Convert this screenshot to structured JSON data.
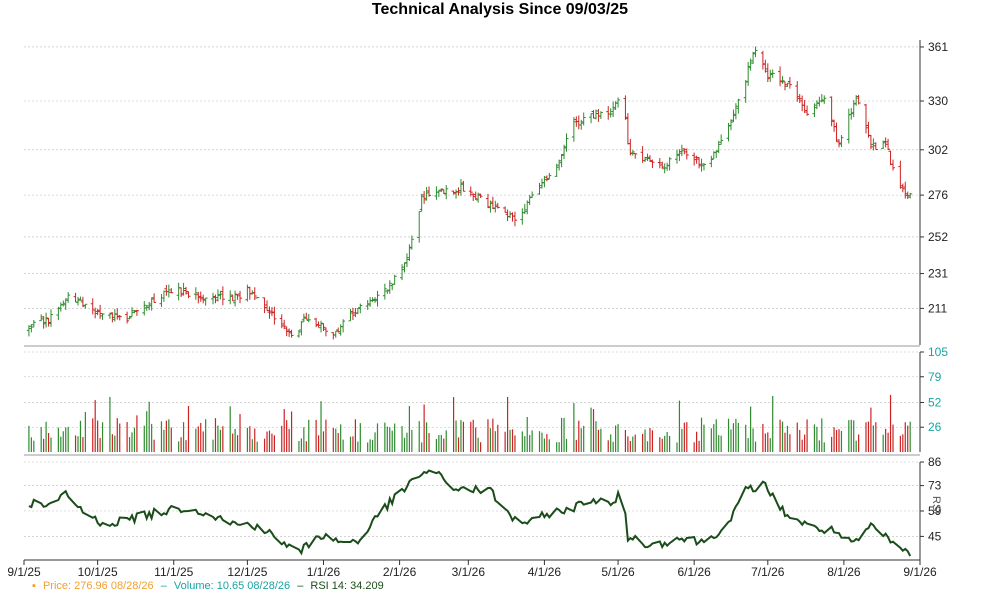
{
  "chart_data": {
    "title": "Technical Analysis Since 09/03/25",
    "x_ticks": [
      "9/1/25",
      "10/1/25",
      "11/1/25",
      "12/1/25",
      "1/1/26",
      "2/1/26",
      "3/1/26",
      "4/1/26",
      "5/1/26",
      "6/1/26",
      "7/1/26",
      "8/1/26",
      "9/1/26"
    ],
    "price_panel": {
      "type": "ohlc",
      "y_ticks": [
        361,
        330,
        302,
        276,
        252,
        231,
        211
      ],
      "ylim": [
        190,
        365
      ],
      "up_color": "#2e8b2e",
      "down_color": "#cc2222",
      "anchors": [
        [
          "9/3/25",
          199
        ],
        [
          "9/12/25",
          206
        ],
        [
          "9/20/25",
          218
        ],
        [
          "9/28/25",
          210
        ],
        [
          "10/5/25",
          208
        ],
        [
          "10/12/25",
          205
        ],
        [
          "10/20/25",
          214
        ],
        [
          "10/28/25",
          219
        ],
        [
          "11/5/25",
          221
        ],
        [
          "11/15/25",
          218
        ],
        [
          "11/25/25",
          217
        ],
        [
          "12/3/25",
          222
        ],
        [
          "12/10/25",
          210
        ],
        [
          "12/18/25",
          197
        ],
        [
          "12/26/25",
          205
        ],
        [
          "1/4/26",
          196
        ],
        [
          "1/12/26",
          207
        ],
        [
          "1/20/26",
          216
        ],
        [
          "1/28/26",
          224
        ],
        [
          "2/4/26",
          240
        ],
        [
          "2/10/26",
          274
        ],
        [
          "2/18/26",
          278
        ],
        [
          "2/26/26",
          280
        ],
        [
          "3/5/26",
          275
        ],
        [
          "3/12/26",
          268
        ],
        [
          "3/20/26",
          262
        ],
        [
          "3/28/26",
          276
        ],
        [
          "4/5/26",
          290
        ],
        [
          "4/12/26",
          316
        ],
        [
          "4/20/26",
          322
        ],
        [
          "4/28/26",
          325
        ],
        [
          "5/3/26",
          334
        ],
        [
          "5/5/26",
          303
        ],
        [
          "5/12/26",
          296
        ],
        [
          "5/20/26",
          294
        ],
        [
          "5/28/26",
          301
        ],
        [
          "6/5/26",
          292
        ],
        [
          "6/12/26",
          305
        ],
        [
          "6/20/26",
          335
        ],
        [
          "6/26/26",
          360
        ],
        [
          "7/1/26",
          345
        ],
        [
          "7/10/26",
          338
        ],
        [
          "7/18/26",
          322
        ],
        [
          "7/24/26",
          333
        ],
        [
          "7/30/26",
          305
        ],
        [
          "8/6/26",
          331
        ],
        [
          "8/12/26",
          305
        ],
        [
          "8/18/26",
          304
        ],
        [
          "8/24/26",
          280
        ],
        [
          "8/28/26",
          277
        ]
      ]
    },
    "volume_panel": {
      "type": "bar",
      "y_ticks": [
        105,
        79,
        52,
        26
      ],
      "ylim": [
        0,
        105
      ]
    },
    "rsi_panel": {
      "type": "line",
      "ylabel": "RSI",
      "y_ticks": [
        86,
        73,
        59,
        45
      ],
      "ylim": [
        32,
        86
      ],
      "color": "#1b4d1b",
      "anchors": [
        [
          "9/3/25",
          64
        ],
        [
          "9/10/25",
          61
        ],
        [
          "9/18/25",
          68
        ],
        [
          "9/28/25",
          55
        ],
        [
          "10/5/25",
          52
        ],
        [
          "10/15/25",
          55
        ],
        [
          "10/25/25",
          58
        ],
        [
          "11/5/25",
          61
        ],
        [
          "11/15/25",
          58
        ],
        [
          "11/25/25",
          52
        ],
        [
          "12/5/25",
          51
        ],
        [
          "12/15/25",
          42
        ],
        [
          "12/22/25",
          36
        ],
        [
          "12/30/25",
          46
        ],
        [
          "1/8/26",
          42
        ],
        [
          "1/16/26",
          43
        ],
        [
          "1/25/26",
          60
        ],
        [
          "2/1/26",
          68
        ],
        [
          "2/8/26",
          78
        ],
        [
          "2/14/26",
          82
        ],
        [
          "2/22/26",
          72
        ],
        [
          "3/1/26",
          71
        ],
        [
          "3/10/26",
          70
        ],
        [
          "3/18/26",
          56
        ],
        [
          "3/26/26",
          52
        ],
        [
          "4/3/26",
          58
        ],
        [
          "4/12/26",
          60
        ],
        [
          "4/20/26",
          66
        ],
        [
          "4/28/26",
          62
        ],
        [
          "5/3/26",
          70
        ],
        [
          "5/5/26",
          45
        ],
        [
          "5/15/26",
          40
        ],
        [
          "5/25/26",
          44
        ],
        [
          "6/5/26",
          42
        ],
        [
          "6/15/26",
          52
        ],
        [
          "6/22/26",
          70
        ],
        [
          "6/29/26",
          74
        ],
        [
          "7/8/26",
          58
        ],
        [
          "7/18/26",
          50
        ],
        [
          "7/28/26",
          48
        ],
        [
          "8/5/26",
          40
        ],
        [
          "8/12/26",
          51
        ],
        [
          "8/20/26",
          42
        ],
        [
          "8/26/26",
          37
        ],
        [
          "8/28/26",
          34.209
        ]
      ]
    }
  },
  "legend": {
    "price_label": "Price: 276.96  08/28/26",
    "volume_label": "Volume: 10.65  08/28/26",
    "rsi_label": "RSI 14: 34.209"
  },
  "colors": {
    "price": "#f0a030",
    "volume": "#1aa3a3",
    "rsi": "#1b4d1b",
    "grid": "#bbbbbb"
  }
}
